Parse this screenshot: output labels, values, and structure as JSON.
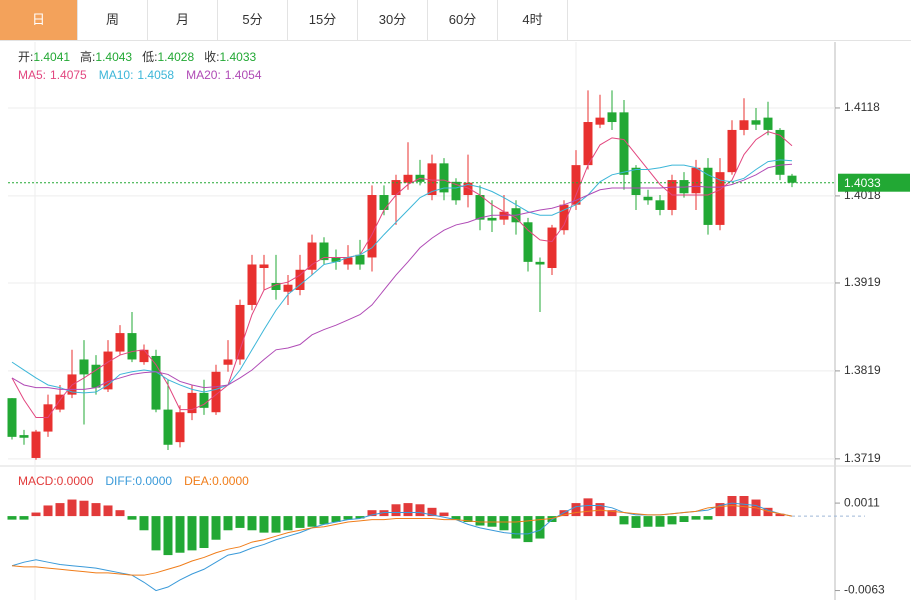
{
  "tabs": [
    "日",
    "周",
    "月",
    "5分",
    "15分",
    "30分",
    "60分",
    "4时"
  ],
  "selected_tab": 0,
  "chart_data": [
    {
      "type": "candlestick",
      "up_color": "#e8312f",
      "down_color": "#22a834",
      "ohlc_labels": [
        "开:",
        "高:",
        "低:",
        "收:"
      ],
      "ylim": [
        1.3712,
        1.4193
      ],
      "yticks": [
        1.4118,
        1.4018,
        1.3919,
        1.3819,
        1.3719
      ],
      "grid": true,
      "open": [
        1.3788,
        1.3746,
        1.372,
        1.375,
        1.3775,
        1.3792,
        1.3832,
        1.3826,
        1.3798,
        1.3841,
        1.3862,
        1.3829,
        1.3836,
        1.3775,
        1.3738,
        1.3771,
        1.3794,
        1.3772,
        1.3826,
        1.3832,
        1.3894,
        1.3936,
        1.3919,
        1.3909,
        1.3911,
        1.3934,
        1.3965,
        1.3948,
        1.394,
        1.3951,
        1.3948,
        1.4019,
        1.4019,
        1.4033,
        1.4042,
        1.4019,
        1.4055,
        1.4034,
        1.4019,
        1.4019,
        1.3993,
        1.3991,
        1.4004,
        1.3988,
        1.3943,
        1.3936,
        1.3979,
        1.4008,
        1.4053,
        1.4099,
        1.4113,
        1.4113,
        1.405,
        1.4017,
        1.4013,
        1.4002,
        1.4036,
        1.4021,
        1.405,
        1.3985,
        1.4045,
        1.4093,
        1.4104,
        1.4107,
        1.4093,
        1.4041
      ],
      "high": [
        1.3788,
        1.3752,
        1.3752,
        1.3792,
        1.3803,
        1.3843,
        1.3854,
        1.3837,
        1.3854,
        1.3871,
        1.3886,
        1.3849,
        1.3843,
        1.3809,
        1.378,
        1.3803,
        1.3809,
        1.3826,
        1.3854,
        1.39,
        1.3951,
        1.3951,
        1.3951,
        1.3928,
        1.3951,
        1.3974,
        1.3971,
        1.3957,
        1.3962,
        1.3968,
        1.403,
        1.403,
        1.4042,
        1.4079,
        1.4059,
        1.4065,
        1.4061,
        1.4038,
        1.4065,
        1.403,
        1.4013,
        1.4019,
        1.4013,
        1.3993,
        1.3948,
        1.3985,
        1.4013,
        1.407,
        1.4138,
        1.4133,
        1.4138,
        1.4127,
        1.4053,
        1.4025,
        1.4019,
        1.4042,
        1.4045,
        1.4059,
        1.4061,
        1.4061,
        1.4104,
        1.4129,
        1.4118,
        1.4125,
        1.4095,
        1.4043
      ],
      "low": [
        1.3741,
        1.3735,
        1.3718,
        1.3744,
        1.3772,
        1.3788,
        1.3758,
        1.3792,
        1.3795,
        1.3837,
        1.3829,
        1.3826,
        1.3772,
        1.3729,
        1.3732,
        1.3763,
        1.3769,
        1.3769,
        1.3818,
        1.3826,
        1.3888,
        1.3911,
        1.39,
        1.3894,
        1.3905,
        1.3928,
        1.394,
        1.3934,
        1.3934,
        1.3934,
        1.3932,
        1.3996,
        1.3985,
        1.4025,
        1.403,
        1.4013,
        1.4013,
        1.4008,
        1.4005,
        1.3979,
        1.3977,
        1.3985,
        1.3974,
        1.3932,
        1.3886,
        1.3928,
        1.3974,
        1.4002,
        1.4048,
        1.4095,
        1.4093,
        1.4025,
        1.4002,
        1.4008,
        1.3996,
        1.3996,
        1.4016,
        1.4002,
        1.3974,
        1.3979,
        1.4042,
        1.4087,
        1.4093,
        1.4087,
        1.4036,
        1.4028
      ],
      "close": [
        1.3744,
        1.3743,
        1.375,
        1.3781,
        1.3792,
        1.3815,
        1.3815,
        1.38,
        1.3841,
        1.3862,
        1.3832,
        1.3843,
        1.3775,
        1.3735,
        1.3772,
        1.3794,
        1.3777,
        1.3818,
        1.3832,
        1.3894,
        1.394,
        1.394,
        1.3911,
        1.3917,
        1.3934,
        1.3965,
        1.3945,
        1.3943,
        1.3948,
        1.394,
        1.4019,
        1.4002,
        1.4036,
        1.4042,
        1.4034,
        1.4055,
        1.4022,
        1.4013,
        1.4033,
        1.3991,
        1.399,
        1.4,
        1.3988,
        1.3943,
        1.394,
        1.3982,
        1.4008,
        1.4053,
        1.4102,
        1.4107,
        1.4102,
        1.4042,
        1.4019,
        1.4013,
        1.4002,
        1.4036,
        1.4021,
        1.405,
        1.3985,
        1.4045,
        1.4093,
        1.4104,
        1.4099,
        1.4093,
        1.4042,
        1.4033
      ],
      "series": [
        {
          "name": "MA5:",
          "color": "#e2467f",
          "values": [
            1.3811,
            1.3786,
            1.3766,
            1.3766,
            1.3786,
            1.3803,
            1.3811,
            1.382,
            1.3829,
            1.3837,
            1.3841,
            1.3843,
            1.3826,
            1.3803,
            1.3775,
            1.3775,
            1.3781,
            1.3792,
            1.3803,
            1.3843,
            1.3883,
            1.3911,
            1.3917,
            1.392,
            1.3928,
            1.394,
            1.3948,
            1.3948,
            1.3948,
            1.3951,
            1.3974,
            1.4002,
            1.4019,
            1.4031,
            1.4038,
            1.4036,
            1.4036,
            1.4031,
            1.4027,
            1.4019,
            1.4008,
            1.4,
            1.3993,
            1.3979,
            1.3968,
            1.3966,
            1.3985,
            1.4019,
            1.4053,
            1.4076,
            1.4084,
            1.4082,
            1.4065,
            1.4048,
            1.4031,
            1.4019,
            1.4019,
            1.4019,
            1.4019,
            1.4025,
            1.4036,
            1.4065,
            1.4082,
            1.4091,
            1.4087,
            1.4075
          ]
        },
        {
          "name": "MA10:",
          "color": "#3cb6d8",
          "values": [
            1.3829,
            1.382,
            1.3811,
            1.3803,
            1.38,
            1.3795,
            1.3794,
            1.3795,
            1.3803,
            1.3815,
            1.3818,
            1.382,
            1.3818,
            1.3809,
            1.3803,
            1.3798,
            1.3795,
            1.3798,
            1.3803,
            1.382,
            1.3843,
            1.3866,
            1.3888,
            1.3906,
            1.3917,
            1.3928,
            1.394,
            1.3943,
            1.3948,
            1.3951,
            1.3959,
            1.3974,
            1.3988,
            1.4002,
            1.4016,
            1.4023,
            1.4027,
            1.4027,
            1.4031,
            1.4028,
            1.4023,
            1.4016,
            1.4008,
            1.4,
            1.3996,
            1.3996,
            1.4002,
            1.4008,
            1.4019,
            1.4034,
            1.4042,
            1.4045,
            1.4048,
            1.4048,
            1.405,
            1.4053,
            1.4053,
            1.405,
            1.4042,
            1.4036,
            1.4034,
            1.4038,
            1.4048,
            1.4057,
            1.4059,
            1.4058
          ]
        },
        {
          "name": "MA20:",
          "color": "#b04bb6",
          "values": [
            1.3811,
            1.3803,
            1.38,
            1.38,
            1.3798,
            1.3798,
            1.3798,
            1.38,
            1.3807,
            1.3811,
            1.3815,
            1.3817,
            1.3818,
            1.3815,
            1.3807,
            1.3803,
            1.38,
            1.3801,
            1.3803,
            1.3811,
            1.382,
            1.3832,
            1.3843,
            1.3845,
            1.3849,
            1.386,
            1.3866,
            1.3871,
            1.3877,
            1.3883,
            1.3894,
            1.3911,
            1.3928,
            1.3943,
            1.3959,
            1.397,
            1.3979,
            1.3985,
            1.3988,
            1.3993,
            1.3996,
            1.3996,
            1.3996,
            1.3999,
            1.4002,
            1.4004,
            1.4008,
            1.4013,
            1.4019,
            1.4025,
            1.4027,
            1.4027,
            1.4027,
            1.4027,
            1.4027,
            1.4028,
            1.4028,
            1.4029,
            1.4028,
            1.4028,
            1.4031,
            1.4036,
            1.4042,
            1.405,
            1.4053,
            1.4054
          ]
        }
      ]
    },
    {
      "type": "macd",
      "ylim": [
        -0.0071,
        0.0039
      ],
      "yticks": [
        0.0011,
        -0.0063
      ],
      "legend_value_labels": [
        "0.0000",
        "0.0000",
        "0.0000"
      ],
      "series": [
        {
          "name": "MACD:",
          "type": "bar",
          "color": "#e23a3a",
          "negative_color": "#22a834",
          "values": [
            -0.0003,
            -0.0003,
            0.0003,
            0.0009,
            0.0011,
            0.0014,
            0.0013,
            0.0011,
            0.0009,
            0.0005,
            -0.0003,
            -0.0012,
            -0.0029,
            -0.0033,
            -0.0031,
            -0.0029,
            -0.0027,
            -0.002,
            -0.0012,
            -0.001,
            -0.0012,
            -0.0014,
            -0.0014,
            -0.0012,
            -0.001,
            -0.0009,
            -0.0007,
            -0.0005,
            -0.0003,
            -0.0002,
            0.0005,
            0.0005,
            0.001,
            0.0011,
            0.001,
            0.0007,
            0.0003,
            -0.0003,
            -0.0005,
            -0.0008,
            -0.0009,
            -0.0012,
            -0.0019,
            -0.0022,
            -0.0019,
            -0.0005,
            0.0005,
            0.0011,
            0.0015,
            0.0011,
            0.0005,
            -0.0007,
            -0.001,
            -0.0009,
            -0.0009,
            -0.0007,
            -0.0005,
            -0.0003,
            -0.0003,
            0.0011,
            0.0017,
            0.0017,
            0.0014,
            0.0007,
            0.0002,
            0
          ]
        },
        {
          "name": "DIFF:",
          "type": "line",
          "color": "#3a9ad9",
          "values": [
            -0.0042,
            -0.0039,
            -0.0037,
            -0.0039,
            -0.0041,
            -0.0042,
            -0.0043,
            -0.0044,
            -0.0046,
            -0.0048,
            -0.005,
            -0.0056,
            -0.0063,
            -0.006,
            -0.0054,
            -0.0049,
            -0.0045,
            -0.0039,
            -0.0033,
            -0.0031,
            -0.0027,
            -0.0024,
            -0.002,
            -0.0017,
            -0.0014,
            -0.001,
            -0.0007,
            -0.0005,
            -0.0003,
            -0.0002,
            0.0001,
            0.0003,
            0.0003,
            0.0003,
            0.0003,
            0.0001,
            -0.0001,
            -0.0003,
            -0.0007,
            -0.001,
            -0.0012,
            -0.0014,
            -0.0015,
            -0.0015,
            -0.0012,
            -0.0003,
            0.0003,
            0.0008,
            0.0009,
            0.0009,
            0.0007,
            0.0003,
            0.0001,
            0.0001,
            0.0001,
            0.0002,
            0.0003,
            0.0004,
            0.0005,
            0.0009,
            0.0011,
            0.001,
            0.0009,
            0.0005,
            0.0002,
            0
          ]
        },
        {
          "name": "DEA:",
          "type": "line",
          "color": "#f07d1a",
          "values": [
            -0.0042,
            -0.0043,
            -0.0043,
            -0.0044,
            -0.0045,
            -0.0046,
            -0.0047,
            -0.0048,
            -0.0048,
            -0.0049,
            -0.005,
            -0.005,
            -0.0048,
            -0.0045,
            -0.0042,
            -0.0038,
            -0.0035,
            -0.0031,
            -0.0028,
            -0.0026,
            -0.0022,
            -0.002,
            -0.0017,
            -0.0014,
            -0.0012,
            -0.001,
            -0.0009,
            -0.0007,
            -0.0005,
            -0.0004,
            -0.0003,
            -0.0003,
            -0.0002,
            -0.0002,
            -0.0002,
            -0.0002,
            -0.0003,
            -0.0003,
            -0.0004,
            -0.0005,
            -0.0005,
            -0.0005,
            -0.0005,
            -0.0004,
            -0.0003,
            -0.0002,
            0.0001,
            0.0003,
            0.0004,
            0.0005,
            0.0004,
            0.0003,
            0.0002,
            0.0001,
            0.0001,
            0.0002,
            0.0003,
            0.0004,
            0.0007,
            0.0008,
            0.0009,
            0.0008,
            0.0007,
            0.0004,
            0.0002,
            0
          ]
        }
      ]
    }
  ]
}
